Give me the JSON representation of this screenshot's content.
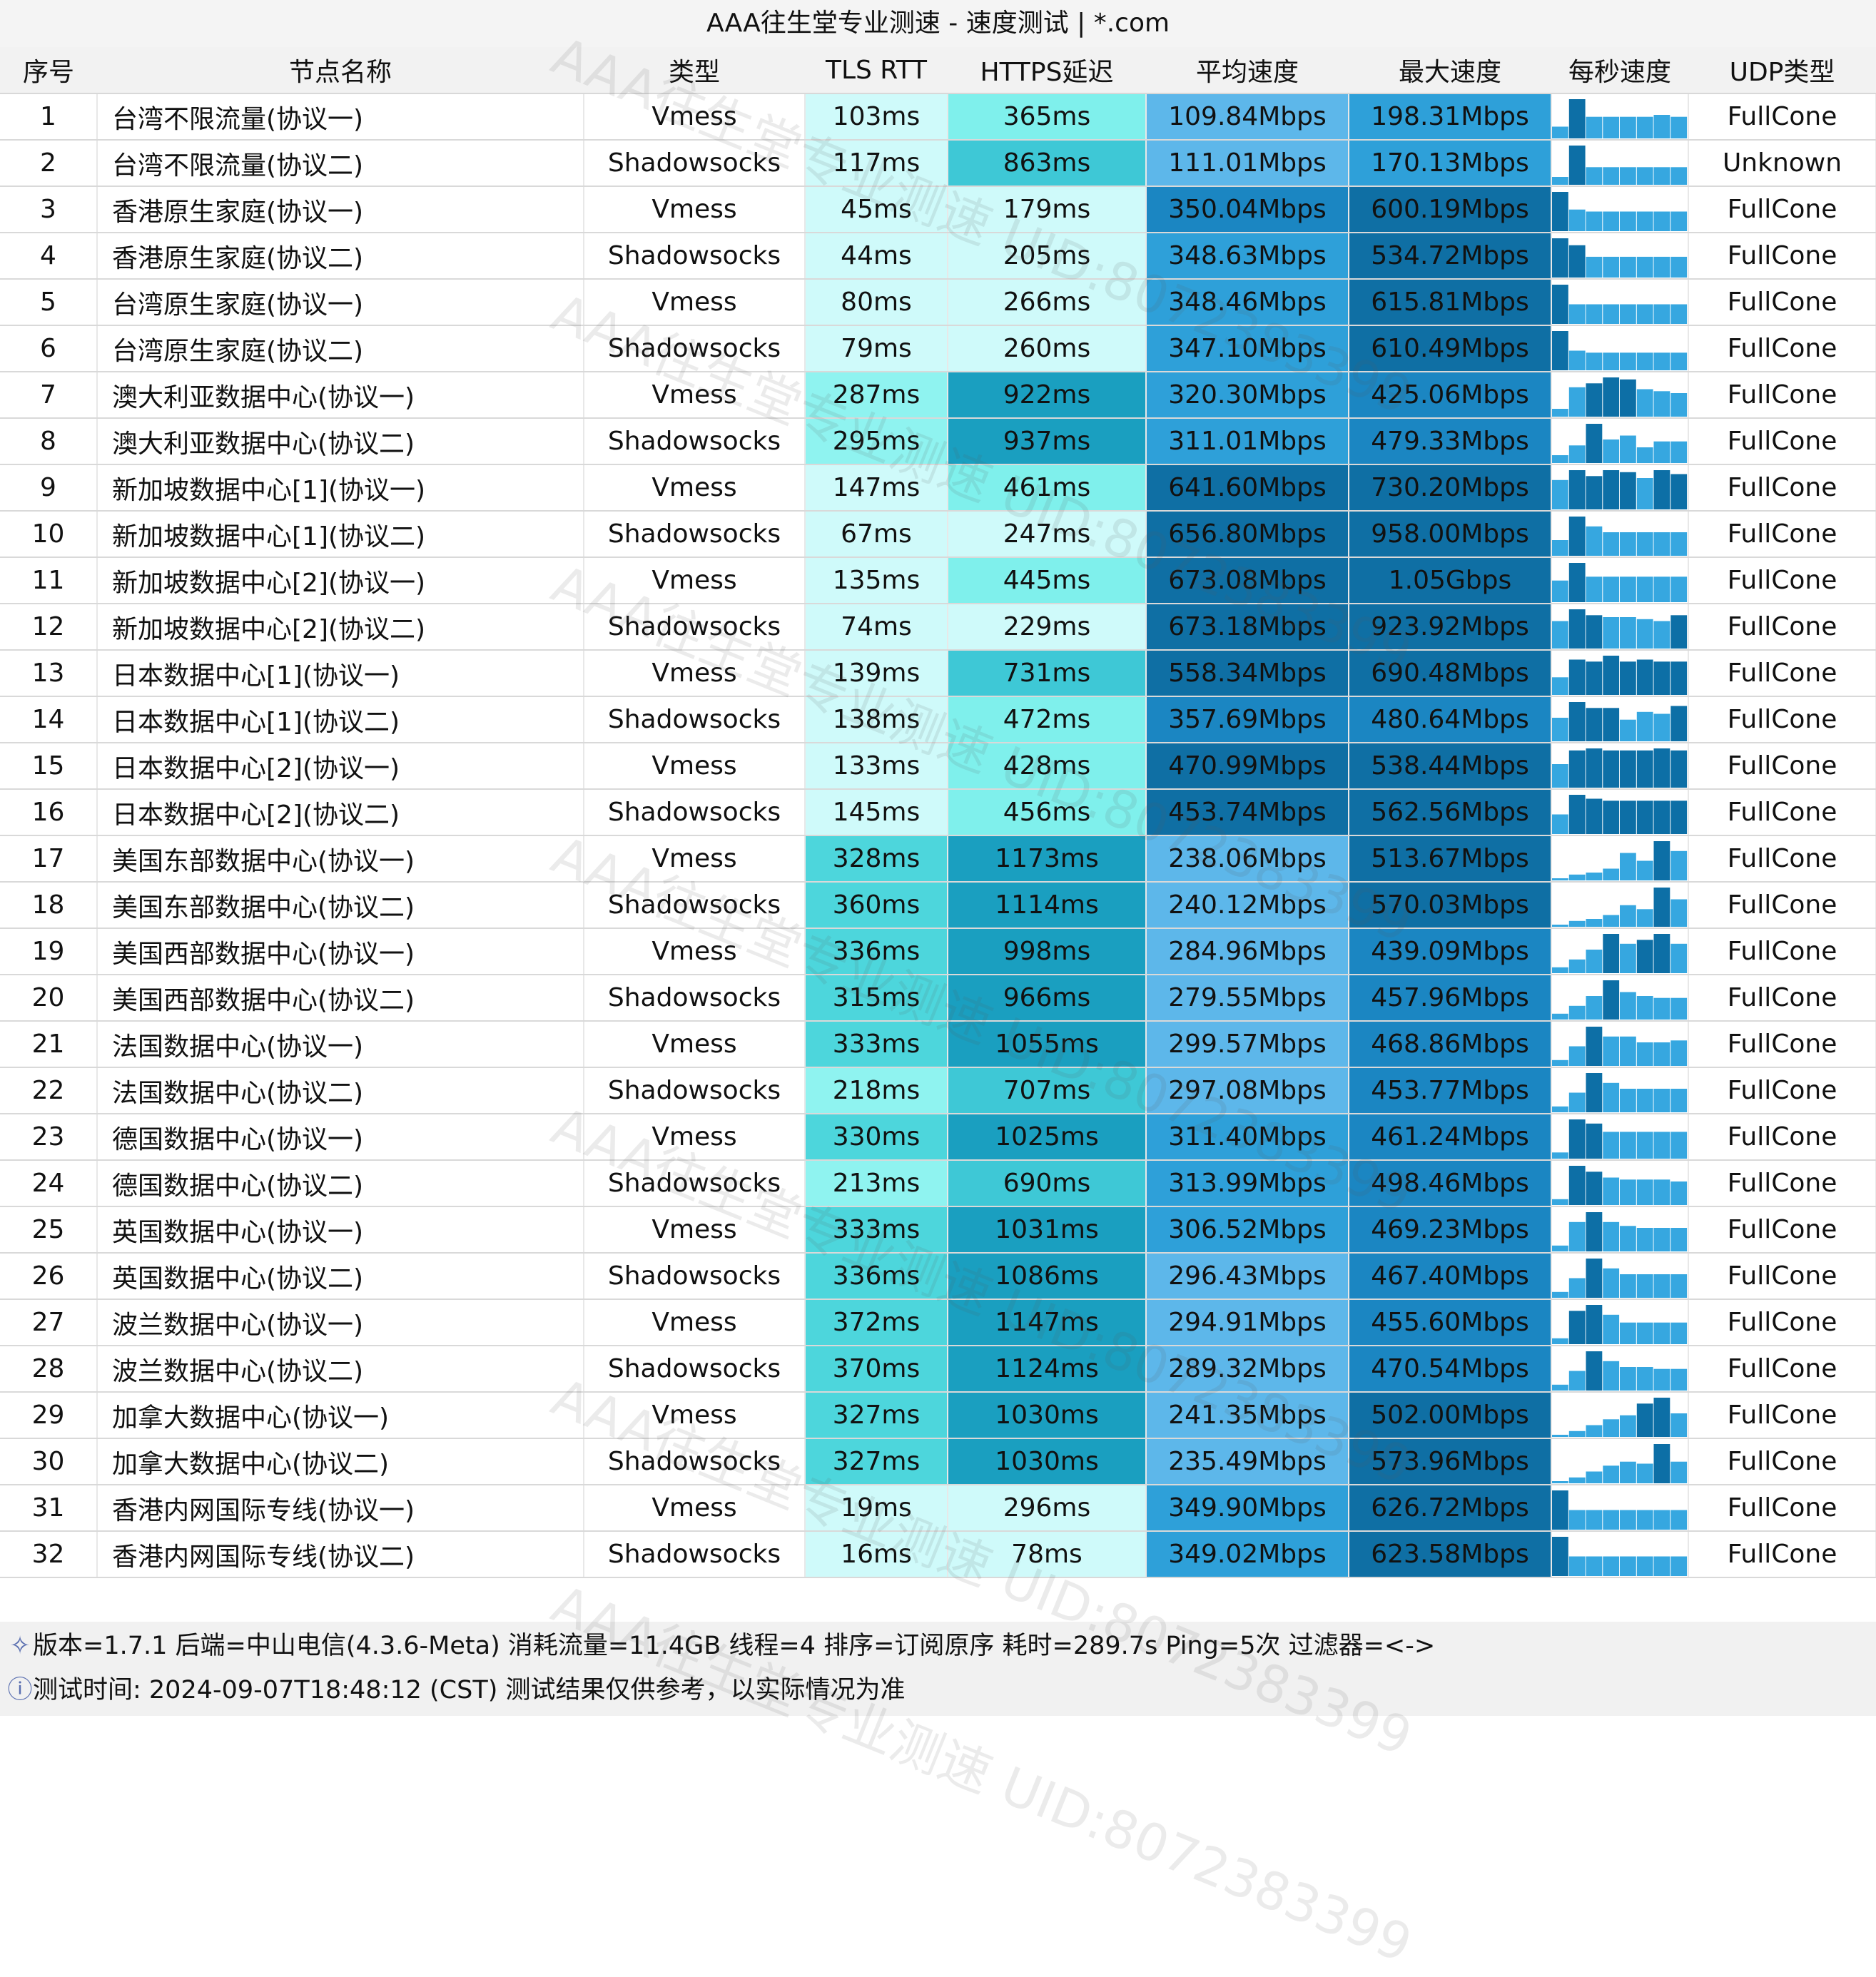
{
  "title": "AAA往生堂专业测速 - 速度测试 | *.com",
  "headers": [
    "序号",
    "节点名称",
    "类型",
    "TLS RTT",
    "HTTPS延迟",
    "平均速度",
    "最大速度",
    "每秒速度",
    "UDP类型"
  ],
  "rows": [
    {
      "no": "1",
      "name": "台湾⁠不限流量(协议一)",
      "type": "Vmess",
      "tls": "103ms",
      "https": "365ms",
      "avg": "109.84Mbps",
      "max": "198.31Mbps",
      "udp": "FullCone",
      "spark": [
        0.3,
        1.0,
        0.55,
        0.55,
        0.55,
        0.55,
        0.6,
        0.55
      ]
    },
    {
      "no": "2",
      "name": "台湾⁠不限流量(协议二)",
      "type": "Shadowsocks",
      "tls": "117ms",
      "https": "863ms",
      "avg": "111.01Mbps",
      "max": "170.13Mbps",
      "udp": "Unknown",
      "spark": [
        0.2,
        1.0,
        0.45,
        0.45,
        0.45,
        0.45,
        0.45,
        0.45
      ]
    },
    {
      "no": "3",
      "name": "香港⁠原生家庭(协议一)",
      "type": "Vmess",
      "tls": "45ms",
      "https": "179ms",
      "avg": "350.04Mbps",
      "max": "600.19Mbps",
      "udp": "FullCone",
      "spark": [
        1.0,
        0.55,
        0.5,
        0.5,
        0.5,
        0.5,
        0.5,
        0.5
      ]
    },
    {
      "no": "4",
      "name": "香港⁠原生家庭(协议二)",
      "type": "Shadowsocks",
      "tls": "44ms",
      "https": "205ms",
      "avg": "348.63Mbps",
      "max": "534.72Mbps",
      "udp": "FullCone",
      "spark": [
        0.85,
        0.7,
        0.45,
        0.45,
        0.45,
        0.45,
        0.45,
        0.45
      ]
    },
    {
      "no": "5",
      "name": "台湾⁠原生家庭(协议一)",
      "type": "Vmess",
      "tls": "80ms",
      "https": "266ms",
      "avg": "348.46Mbps",
      "max": "615.81Mbps",
      "udp": "FullCone",
      "spark": [
        1.0,
        0.5,
        0.5,
        0.5,
        0.5,
        0.5,
        0.5,
        0.5
      ]
    },
    {
      "no": "6",
      "name": "台湾⁠原生家庭(协议二)",
      "type": "Shadowsocks",
      "tls": "79ms",
      "https": "260ms",
      "avg": "347.10Mbps",
      "max": "610.49Mbps",
      "udp": "FullCone",
      "spark": [
        1.0,
        0.5,
        0.45,
        0.45,
        0.45,
        0.45,
        0.45,
        0.45
      ]
    },
    {
      "no": "7",
      "name": "澳大利亚⁠数据中心(协议一)",
      "type": "Vmess",
      "tls": "287ms",
      "https": "922ms",
      "avg": "320.30Mbps",
      "max": "425.06Mbps",
      "udp": "FullCone",
      "spark": [
        0.2,
        0.75,
        0.85,
        1.0,
        0.95,
        0.7,
        0.65,
        0.6
      ]
    },
    {
      "no": "8",
      "name": "澳大利亚⁠数据中心(协议二)",
      "type": "Shadowsocks",
      "tls": "295ms",
      "https": "937ms",
      "avg": "311.01Mbps",
      "max": "479.33Mbps",
      "udp": "FullCone",
      "spark": [
        0.2,
        0.45,
        1.0,
        0.6,
        0.7,
        0.4,
        0.55,
        0.55
      ]
    },
    {
      "no": "9",
      "name": "新加坡⁠数据中心[1](协议一)",
      "type": "Vmess",
      "tls": "147ms",
      "https": "461ms",
      "avg": "641.60Mbps",
      "max": "730.20Mbps",
      "udp": "FullCone",
      "spark": [
        0.75,
        1.0,
        0.85,
        1.0,
        0.95,
        0.8,
        1.0,
        0.9
      ]
    },
    {
      "no": "10",
      "name": "新加坡⁠数据中心[1](协议二)",
      "type": "Shadowsocks",
      "tls": "67ms",
      "https": "247ms",
      "avg": "656.80Mbps",
      "max": "958.00Mbps",
      "udp": "FullCone",
      "spark": [
        0.4,
        1.0,
        0.75,
        0.6,
        0.6,
        0.6,
        0.6,
        0.6
      ]
    },
    {
      "no": "11",
      "name": "新加坡⁠数据中心[2](协议一)",
      "type": "Vmess",
      "tls": "135ms",
      "https": "445ms",
      "avg": "673.08Mbps",
      "max": "1.05Gbps",
      "udp": "FullCone",
      "spark": [
        0.55,
        1.0,
        0.65,
        0.65,
        0.65,
        0.65,
        0.65,
        0.65
      ]
    },
    {
      "no": "12",
      "name": "新加坡⁠数据中心[2](协议二)",
      "type": "Shadowsocks",
      "tls": "74ms",
      "https": "229ms",
      "avg": "673.18Mbps",
      "max": "923.92Mbps",
      "udp": "FullCone",
      "spark": [
        0.7,
        1.0,
        0.85,
        0.8,
        0.8,
        0.75,
        0.7,
        0.85
      ]
    },
    {
      "no": "13",
      "name": "日本⁠数据中心[1](协议一)",
      "type": "Vmess",
      "tls": "139ms",
      "https": "731ms",
      "avg": "558.34Mbps",
      "max": "690.48Mbps",
      "udp": "FullCone",
      "spark": [
        0.45,
        0.9,
        0.85,
        1.0,
        0.85,
        0.9,
        0.85,
        0.85
      ]
    },
    {
      "no": "14",
      "name": "日本⁠数据中心[1](协议二)",
      "type": "Shadowsocks",
      "tls": "138ms",
      "https": "472ms",
      "avg": "357.69Mbps",
      "max": "480.64Mbps",
      "udp": "FullCone",
      "spark": [
        0.6,
        1.0,
        0.85,
        0.85,
        0.55,
        0.75,
        0.7,
        0.9
      ]
    },
    {
      "no": "15",
      "name": "日本⁠数据中心[2](协议一)",
      "type": "Vmess",
      "tls": "133ms",
      "https": "428ms",
      "avg": "470.99Mbps",
      "max": "538.44Mbps",
      "udp": "FullCone",
      "spark": [
        0.6,
        0.95,
        1.0,
        0.95,
        0.95,
        0.95,
        1.0,
        0.95
      ]
    },
    {
      "no": "16",
      "name": "日本⁠数据中心[2](协议二)",
      "type": "Shadowsocks",
      "tls": "145ms",
      "https": "456ms",
      "avg": "453.74Mbps",
      "max": "562.56Mbps",
      "udp": "FullCone",
      "spark": [
        0.5,
        1.0,
        0.9,
        0.85,
        0.85,
        0.85,
        0.85,
        0.85
      ]
    },
    {
      "no": "17",
      "name": "美国东部⁠数据中心(协议一)",
      "type": "Vmess",
      "tls": "328ms",
      "https": "1173ms",
      "avg": "238.06Mbps",
      "max": "513.67Mbps",
      "udp": "FullCone",
      "spark": [
        0.05,
        0.15,
        0.2,
        0.3,
        0.7,
        0.5,
        1.0,
        0.75
      ]
    },
    {
      "no": "18",
      "name": "美国东部⁠数据中心(协议二)",
      "type": "Shadowsocks",
      "tls": "360ms",
      "https": "1114ms",
      "avg": "240.12Mbps",
      "max": "570.03Mbps",
      "udp": "FullCone",
      "spark": [
        0.05,
        0.15,
        0.2,
        0.3,
        0.55,
        0.45,
        1.0,
        0.7
      ]
    },
    {
      "no": "19",
      "name": "美国西部⁠数据中心(协议一)",
      "type": "Vmess",
      "tls": "336ms",
      "https": "998ms",
      "avg": "284.96Mbps",
      "max": "439.09Mbps",
      "udp": "FullCone",
      "spark": [
        0.15,
        0.35,
        0.6,
        1.0,
        0.75,
        0.85,
        1.0,
        0.75
      ]
    },
    {
      "no": "20",
      "name": "美国西部⁠数据中心(协议二)",
      "type": "Shadowsocks",
      "tls": "315ms",
      "https": "966ms",
      "avg": "279.55Mbps",
      "max": "457.96Mbps",
      "udp": "FullCone",
      "spark": [
        0.15,
        0.35,
        0.6,
        1.0,
        0.7,
        0.6,
        0.55,
        0.55
      ]
    },
    {
      "no": "21",
      "name": "法国⁠数据中心(协议一)",
      "type": "Vmess",
      "tls": "333ms",
      "https": "1055ms",
      "avg": "299.57Mbps",
      "max": "468.86Mbps",
      "udp": "FullCone",
      "spark": [
        0.15,
        0.5,
        1.0,
        0.75,
        0.75,
        0.6,
        0.6,
        0.65
      ]
    },
    {
      "no": "22",
      "name": "法国⁠数据中心(协议二)",
      "type": "Shadowsocks",
      "tls": "218ms",
      "https": "707ms",
      "avg": "297.08Mbps",
      "max": "453.77Mbps",
      "udp": "FullCone",
      "spark": [
        0.15,
        0.5,
        1.0,
        0.75,
        0.6,
        0.6,
        0.6,
        0.6
      ]
    },
    {
      "no": "23",
      "name": "德国⁠数据中心(协议一)",
      "type": "Vmess",
      "tls": "330ms",
      "https": "1025ms",
      "avg": "311.40Mbps",
      "max": "461.24Mbps",
      "udp": "FullCone",
      "spark": [
        0.15,
        0.95,
        0.85,
        0.65,
        0.65,
        0.65,
        0.65,
        0.65
      ]
    },
    {
      "no": "24",
      "name": "德国⁠数据中心(协议二)",
      "type": "Shadowsocks",
      "tls": "213ms",
      "https": "690ms",
      "avg": "313.99Mbps",
      "max": "498.46Mbps",
      "udp": "FullCone",
      "spark": [
        0.15,
        1.0,
        0.85,
        0.7,
        0.65,
        0.65,
        0.65,
        0.6
      ]
    },
    {
      "no": "25",
      "name": "英国⁠数据中心(协议一)",
      "type": "Vmess",
      "tls": "333ms",
      "https": "1031ms",
      "avg": "306.52Mbps",
      "max": "469.23Mbps",
      "udp": "FullCone",
      "spark": [
        0.15,
        0.75,
        1.0,
        0.75,
        0.65,
        0.6,
        0.6,
        0.6
      ]
    },
    {
      "no": "26",
      "name": "英国⁠数据中心(协议二)",
      "type": "Shadowsocks",
      "tls": "336ms",
      "https": "1086ms",
      "avg": "296.43Mbps",
      "max": "467.40Mbps",
      "udp": "FullCone",
      "spark": [
        0.15,
        0.5,
        1.0,
        0.75,
        0.6,
        0.6,
        0.6,
        0.6
      ]
    },
    {
      "no": "27",
      "name": "波兰⁠数据中心(协议一)",
      "type": "Vmess",
      "tls": "372ms",
      "https": "1147ms",
      "avg": "294.91Mbps",
      "max": "455.60Mbps",
      "udp": "FullCone",
      "spark": [
        0.15,
        0.85,
        1.0,
        0.75,
        0.55,
        0.55,
        0.55,
        0.55
      ]
    },
    {
      "no": "28",
      "name": "波兰⁠数据中心(协议二)",
      "type": "Shadowsocks",
      "tls": "370ms",
      "https": "1124ms",
      "avg": "289.32Mbps",
      "max": "470.54Mbps",
      "udp": "FullCone",
      "spark": [
        0.15,
        0.5,
        1.0,
        0.75,
        0.6,
        0.6,
        0.55,
        0.55
      ]
    },
    {
      "no": "29",
      "name": "加拿大⁠数据中心(协议一)",
      "type": "Vmess",
      "tls": "327ms",
      "https": "1030ms",
      "avg": "241.35Mbps",
      "max": "502.00Mbps",
      "udp": "FullCone",
      "spark": [
        0.05,
        0.15,
        0.3,
        0.45,
        0.55,
        0.85,
        1.0,
        0.6
      ]
    },
    {
      "no": "30",
      "name": "加拿大⁠数据中心(协议二)",
      "type": "Shadowsocks",
      "tls": "327ms",
      "https": "1030ms",
      "avg": "235.49Mbps",
      "max": "573.96Mbps",
      "udp": "FullCone",
      "spark": [
        0.05,
        0.15,
        0.3,
        0.45,
        0.55,
        0.5,
        1.0,
        0.55
      ]
    },
    {
      "no": "31",
      "name": "香港内网⁠国际专线(协议一)",
      "type": "Vmess",
      "tls": "19ms",
      "https": "296ms",
      "avg": "349.90Mbps",
      "max": "626.72Mbps",
      "udp": "FullCone",
      "spark": [
        1.0,
        0.5,
        0.5,
        0.5,
        0.5,
        0.5,
        0.5,
        0.5
      ]
    },
    {
      "no": "32",
      "name": "香港内网⁠国际专线(协议二)",
      "type": "Shadowsocks",
      "tls": "16ms",
      "https": "78ms",
      "avg": "349.02Mbps",
      "max": "623.58Mbps",
      "udp": "FullCone",
      "spark": [
        1.0,
        0.5,
        0.5,
        0.5,
        0.5,
        0.5,
        0.5,
        0.5
      ]
    }
  ],
  "footer": {
    "line1": "版本=1.7.1  后端=中山电信(4.3.6-Meta) 消耗流量=11.4GB  线程=4  排序=订阅原序  耗时=289.7s  Ping=5次  过滤器=<->",
    "line2": "测试时间: 2024-09-07T18:48:12 (CST)  测试结果仅供参考，以实际情况为准",
    "icon1": "satellite-icon",
    "icon2": "info-icon"
  },
  "watermark": "AAA往生堂专业测速 UID:8072383399",
  "colors": {
    "tls_light": "#cffafa",
    "tls_mid": "#8ff3f0",
    "tls_dark": "#4dd6dc",
    "https_light": "#cffafa",
    "https_mid": "#7ff0ec",
    "https_dark": "#3ec8d6",
    "https_darker": "#1a9fc0",
    "speed_1": "#5db7ea",
    "speed_2": "#2ea0d9",
    "speed_3": "#1b86c2",
    "speed_4": "#0f6fa4",
    "spark_light": "#36a7e0",
    "spark_dark": "#0d6fa6"
  }
}
